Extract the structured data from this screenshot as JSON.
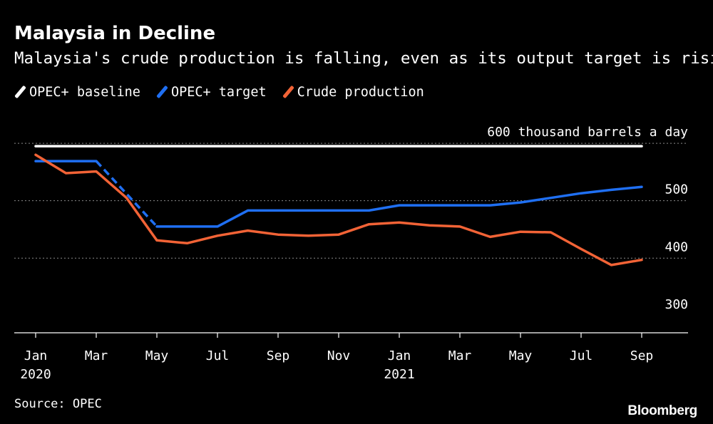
{
  "header": {
    "title": "Malaysia in Decline",
    "subtitle": "Malaysia's crude production is falling, even as its output target is rising"
  },
  "legend": {
    "items": [
      {
        "label": "OPEC+ baseline",
        "color": "#ffffff"
      },
      {
        "label": "OPEC+ target",
        "color": "#1f6ff2"
      },
      {
        "label": "Crude production",
        "color": "#f26336"
      }
    ]
  },
  "footer": {
    "source": "Source: OPEC",
    "brand": "Bloomberg"
  },
  "chart_data": {
    "type": "line",
    "title": "Malaysia in Decline",
    "subtitle": "Malaysia's crude production is falling, even as its output target is rising",
    "ylabel": "600 thousand barrels a day",
    "ylim": [
      270,
      620
    ],
    "yticks": [
      {
        "value": 600,
        "label": "600 thousand barrels a day"
      },
      {
        "value": 500,
        "label": "500"
      },
      {
        "value": 400,
        "label": "400"
      },
      {
        "value": 300,
        "label": "300"
      }
    ],
    "xlim": [
      0,
      20
    ],
    "xticks": [
      {
        "x": 0,
        "label": "Jan",
        "label2": "2020"
      },
      {
        "x": 2,
        "label": "Mar",
        "label2": ""
      },
      {
        "x": 4,
        "label": "May",
        "label2": ""
      },
      {
        "x": 6,
        "label": "Jul",
        "label2": ""
      },
      {
        "x": 8,
        "label": "Sep",
        "label2": ""
      },
      {
        "x": 10,
        "label": "Nov",
        "label2": ""
      },
      {
        "x": 12,
        "label": "Jan",
        "label2": "2021"
      },
      {
        "x": 14,
        "label": "Mar",
        "label2": ""
      },
      {
        "x": 16,
        "label": "May",
        "label2": ""
      },
      {
        "x": 18,
        "label": "Jul",
        "label2": ""
      },
      {
        "x": 20,
        "label": "Sep",
        "label2": ""
      }
    ],
    "grid": "horizontal-dotted",
    "legend_position": "top-left",
    "series": [
      {
        "name": "OPEC+ baseline",
        "color": "#ffffff",
        "x": [
          0,
          20
        ],
        "values": [
          595,
          595
        ]
      },
      {
        "name": "OPEC+ target",
        "color": "#1f6ff2",
        "x": [
          0,
          2,
          4,
          6,
          7,
          8,
          9,
          10,
          11,
          12,
          13,
          14,
          15,
          16,
          17,
          18,
          19,
          20
        ],
        "values": [
          569,
          569,
          455,
          455,
          483,
          483,
          483,
          483,
          483,
          492,
          492,
          492,
          492,
          497,
          505,
          513,
          519,
          524
        ],
        "dashed_segments": [
          [
            2,
            4
          ]
        ]
      },
      {
        "name": "Crude production",
        "color": "#f26336",
        "x": [
          0,
          1,
          2,
          3,
          4,
          5,
          6,
          7,
          8,
          9,
          10,
          11,
          12,
          13,
          14,
          15,
          16,
          17,
          18,
          19,
          20
        ],
        "values": [
          580,
          548,
          551,
          505,
          431,
          426,
          439,
          448,
          441,
          439,
          441,
          459,
          462,
          457,
          455,
          437,
          446,
          445,
          416,
          388,
          397
        ]
      }
    ]
  }
}
